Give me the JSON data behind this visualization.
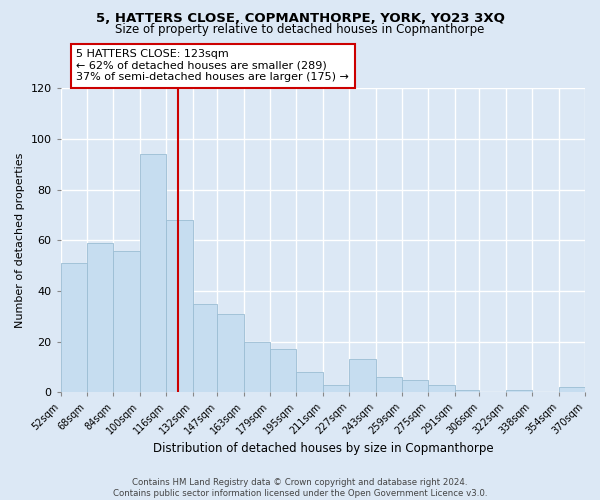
{
  "title": "5, HATTERS CLOSE, COPMANTHORPE, YORK, YO23 3XQ",
  "subtitle": "Size of property relative to detached houses in Copmanthorpe",
  "xlabel": "Distribution of detached houses by size in Copmanthorpe",
  "ylabel": "Number of detached properties",
  "bar_color": "#c6ddf0",
  "bar_edge_color": "#9bbdd4",
  "fig_bg_color": "#dce8f5",
  "axes_bg_color": "#dce8f5",
  "grid_color": "#ffffff",
  "vline_x": 123,
  "vline_color": "#cc0000",
  "annotation_box_color": "#cc0000",
  "annotation_lines": [
    "5 HATTERS CLOSE: 123sqm",
    "← 62% of detached houses are smaller (289)",
    "37% of semi-detached houses are larger (175) →"
  ],
  "bin_edges": [
    52,
    68,
    84,
    100,
    116,
    132,
    147,
    163,
    179,
    195,
    211,
    227,
    243,
    259,
    275,
    291,
    306,
    322,
    338,
    354,
    370
  ],
  "bar_heights": [
    51,
    59,
    56,
    94,
    68,
    35,
    31,
    20,
    17,
    8,
    3,
    13,
    6,
    5,
    3,
    1,
    0,
    1,
    0,
    2
  ],
  "ylim": [
    0,
    120
  ],
  "yticks": [
    0,
    20,
    40,
    60,
    80,
    100,
    120
  ],
  "footer_lines": [
    "Contains HM Land Registry data © Crown copyright and database right 2024.",
    "Contains public sector information licensed under the Open Government Licence v3.0."
  ]
}
